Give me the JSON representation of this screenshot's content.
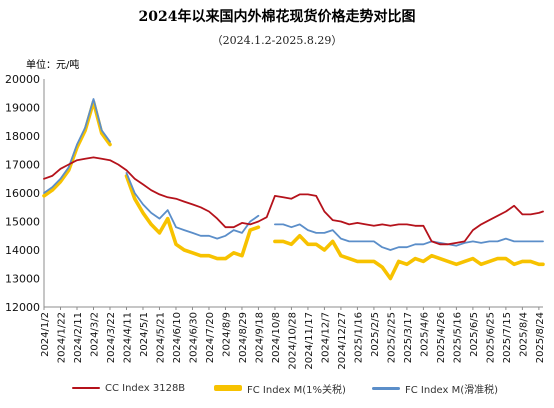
{
  "chart_data": {
    "type": "line",
    "title": "2024年以来国内外棉花现货价格走势对比图",
    "subtitle": "（2024.1.2-2025.8.29）",
    "unit_label": "单位：元/吨",
    "ylim": [
      12000,
      20000
    ],
    "yticks": [
      12000,
      13000,
      14000,
      15000,
      16000,
      17000,
      18000,
      19000,
      20000
    ],
    "xticks": [
      "2024/1/2",
      "2024/1/22",
      "2024/2/11",
      "2024/3/2",
      "2024/3/22",
      "2024/4/11",
      "2024/5/1",
      "2024/5/21",
      "2024/6/10",
      "2024/6/30",
      "2024/7/20",
      "2024/8/9",
      "2024/8/29",
      "2024/9/18",
      "2024/10/8",
      "2024/10/28",
      "2024/11/17",
      "2024/12/7",
      "2024/12/27",
      "2025/1/16",
      "2025/2/5",
      "2025/2/25",
      "2025/3/17",
      "2025/4/6",
      "2025/4/26",
      "2025/5/16",
      "2025/6/5",
      "2025/6/25",
      "2025/7/15",
      "2025/8/4",
      "2025/8/24"
    ],
    "x_range": [
      "2024/1/2",
      "2025/8/29"
    ],
    "legend_position": "bottom",
    "series": [
      {
        "name": "CC Index 3128B",
        "color": "#b5121b",
        "x": [
          "2024/1/2",
          "2024/1/12",
          "2024/1/22",
          "2024/2/1",
          "2024/2/11",
          "2024/2/21",
          "2024/3/2",
          "2024/3/12",
          "2024/3/22",
          "2024/4/1",
          "2024/4/11",
          "2024/4/21",
          "2024/5/1",
          "2024/5/11",
          "2024/5/21",
          "2024/5/31",
          "2024/6/10",
          "2024/6/20",
          "2024/6/30",
          "2024/7/10",
          "2024/7/20",
          "2024/7/30",
          "2024/8/9",
          "2024/8/19",
          "2024/8/29",
          "2024/9/8",
          "2024/9/18",
          "2024/9/28",
          "2024/10/8",
          "2024/10/18",
          "2024/10/28",
          "2024/11/7",
          "2024/11/17",
          "2024/11/27",
          "2024/12/7",
          "2024/12/17",
          "2024/12/27",
          "2025/1/6",
          "2025/1/16",
          "2025/1/26",
          "2025/2/5",
          "2025/2/15",
          "2025/2/25",
          "2025/3/7",
          "2025/3/17",
          "2025/3/27",
          "2025/4/6",
          "2025/4/16",
          "2025/4/26",
          "2025/5/6",
          "2025/5/16",
          "2025/5/26",
          "2025/6/5",
          "2025/6/15",
          "2025/6/25",
          "2025/7/5",
          "2025/7/15",
          "2025/7/25",
          "2025/8/4",
          "2025/8/14",
          "2025/8/24",
          "2025/8/29"
        ],
        "values": [
          16500,
          16600,
          16850,
          17000,
          17150,
          17200,
          17250,
          17200,
          17150,
          17000,
          16800,
          16500,
          16300,
          16100,
          15950,
          15850,
          15800,
          15700,
          15600,
          15500,
          15350,
          15100,
          14800,
          14800,
          14950,
          14900,
          15000,
          15150,
          15900,
          15850,
          15800,
          15950,
          15950,
          15900,
          15350,
          15050,
          15000,
          14900,
          14950,
          14900,
          14850,
          14900,
          14850,
          14900,
          14900,
          14850,
          14850,
          14300,
          14200,
          14200,
          14250,
          14300,
          14700,
          14900,
          15050,
          15200,
          15350,
          15550,
          15250,
          15250,
          15300,
          15350
        ]
      },
      {
        "name": "FC Index M(1%关税)",
        "color": "#f7c200",
        "x": [
          "2024/1/2",
          "2024/1/12",
          "2024/1/22",
          "2024/2/1",
          "2024/2/11",
          "2024/2/21",
          "2024/3/2",
          "2024/3/12",
          "2024/3/22",
          "2024/4/1",
          "2024/4/11",
          "2024/4/21",
          "2024/5/1",
          "2024/5/11",
          "2024/5/21",
          "2024/5/31",
          "2024/6/10",
          "2024/6/20",
          "2024/6/30",
          "2024/7/10",
          "2024/7/20",
          "2024/7/30",
          "2024/8/9",
          "2024/8/19",
          "2024/8/29",
          "2024/9/8",
          "2024/9/18",
          "2024/9/28",
          "2024/10/8",
          "2024/10/18",
          "2024/10/28",
          "2024/11/7",
          "2024/11/17",
          "2024/11/27",
          "2024/12/7",
          "2024/12/17",
          "2024/12/27",
          "2025/1/6",
          "2025/1/16",
          "2025/1/26",
          "2025/2/5",
          "2025/2/15",
          "2025/2/25",
          "2025/3/7",
          "2025/3/17",
          "2025/3/27",
          "2025/4/6",
          "2025/4/16",
          "2025/4/26",
          "2025/5/6",
          "2025/5/16",
          "2025/5/26",
          "2025/6/5",
          "2025/6/15",
          "2025/6/25",
          "2025/7/5",
          "2025/7/15",
          "2025/7/25",
          "2025/8/4",
          "2025/8/14",
          "2025/8/24",
          "2025/8/29"
        ],
        "values": [
          15900,
          16100,
          16400,
          16800,
          17600,
          18200,
          19200,
          18100,
          17700,
          null,
          16600,
          15800,
          15300,
          14900,
          14600,
          15100,
          14200,
          14000,
          13900,
          13800,
          13800,
          13700,
          13700,
          13900,
          13800,
          14700,
          14800,
          null,
          14300,
          14300,
          14200,
          14500,
          14200,
          14200,
          14000,
          14300,
          13800,
          13700,
          13600,
          13600,
          13600,
          13400,
          13000,
          13600,
          13500,
          13700,
          13600,
          13800,
          13700,
          13600,
          13500,
          13600,
          13700,
          13500,
          13600,
          13700,
          13700,
          13500,
          13600,
          13600,
          13500,
          13500
        ]
      },
      {
        "name": "FC Index M(滑准税)",
        "color": "#5b8ec9",
        "x": [
          "2024/1/2",
          "2024/1/12",
          "2024/1/22",
          "2024/2/1",
          "2024/2/11",
          "2024/2/21",
          "2024/3/2",
          "2024/3/12",
          "2024/3/22",
          "2024/4/1",
          "2024/4/11",
          "2024/4/21",
          "2024/5/1",
          "2024/5/11",
          "2024/5/21",
          "2024/5/31",
          "2024/6/10",
          "2024/6/20",
          "2024/6/30",
          "2024/7/10",
          "2024/7/20",
          "2024/7/30",
          "2024/8/9",
          "2024/8/19",
          "2024/8/29",
          "2024/9/8",
          "2024/9/18",
          "2024/9/28",
          "2024/10/8",
          "2024/10/18",
          "2024/10/28",
          "2024/11/7",
          "2024/11/17",
          "2024/11/27",
          "2024/12/7",
          "2024/12/17",
          "2024/12/27",
          "2025/1/6",
          "2025/1/16",
          "2025/1/26",
          "2025/2/5",
          "2025/2/15",
          "2025/2/25",
          "2025/3/7",
          "2025/3/17",
          "2025/3/27",
          "2025/4/6",
          "2025/4/16",
          "2025/4/26",
          "2025/5/6",
          "2025/5/16",
          "2025/5/26",
          "2025/6/5",
          "2025/6/15",
          "2025/6/25",
          "2025/7/5",
          "2025/7/15",
          "2025/7/25",
          "2025/8/4",
          "2025/8/14",
          "2025/8/24",
          "2025/8/29"
        ],
        "values": [
          16000,
          16200,
          16500,
          16900,
          17700,
          18300,
          19300,
          18200,
          17800,
          null,
          16700,
          16000,
          15600,
          15300,
          15100,
          15400,
          14800,
          14700,
          14600,
          14500,
          14500,
          14400,
          14500,
          14700,
          14600,
          15000,
          15200,
          null,
          14900,
          14900,
          14800,
          14900,
          14700,
          14600,
          14600,
          14700,
          14400,
          14300,
          14300,
          14300,
          14300,
          14100,
          14000,
          14100,
          14100,
          14200,
          14200,
          14300,
          14250,
          14200,
          14150,
          14250,
          14300,
          14250,
          14300,
          14300,
          14400,
          14300,
          14300,
          14300,
          14300,
          14300
        ]
      }
    ]
  }
}
